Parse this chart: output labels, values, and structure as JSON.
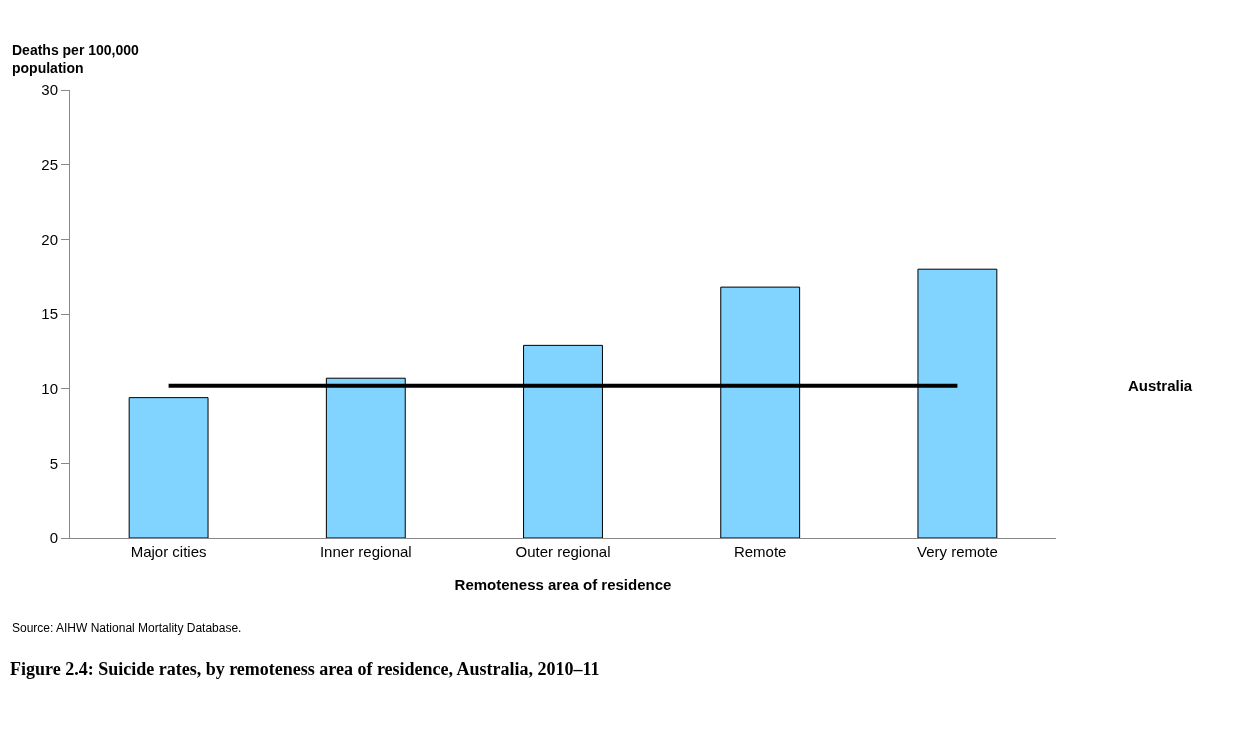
{
  "chart_data": {
    "type": "bar",
    "title": "Figure 2.4: Suicide rates, by remoteness area of residence, Australia, 2010–11",
    "xlabel": "Remoteness area of residence",
    "ylabel": "Deaths per 100,000\npopulation",
    "categories": [
      "Major cities",
      "Inner regional",
      "Outer regional",
      "Remote",
      "Very remote"
    ],
    "values": [
      9.4,
      10.7,
      12.9,
      16.8,
      18.0
    ],
    "color": "#80d4ff",
    "ylim": [
      0,
      30
    ],
    "yticks": [
      0,
      5,
      10,
      15,
      20,
      25,
      30
    ],
    "ref_lines": [
      {
        "axis": "y",
        "value": 10.2,
        "label": "Australia",
        "color": "#000000"
      }
    ],
    "annotations": [
      "Source: AIHW National Mortality Database."
    ]
  }
}
